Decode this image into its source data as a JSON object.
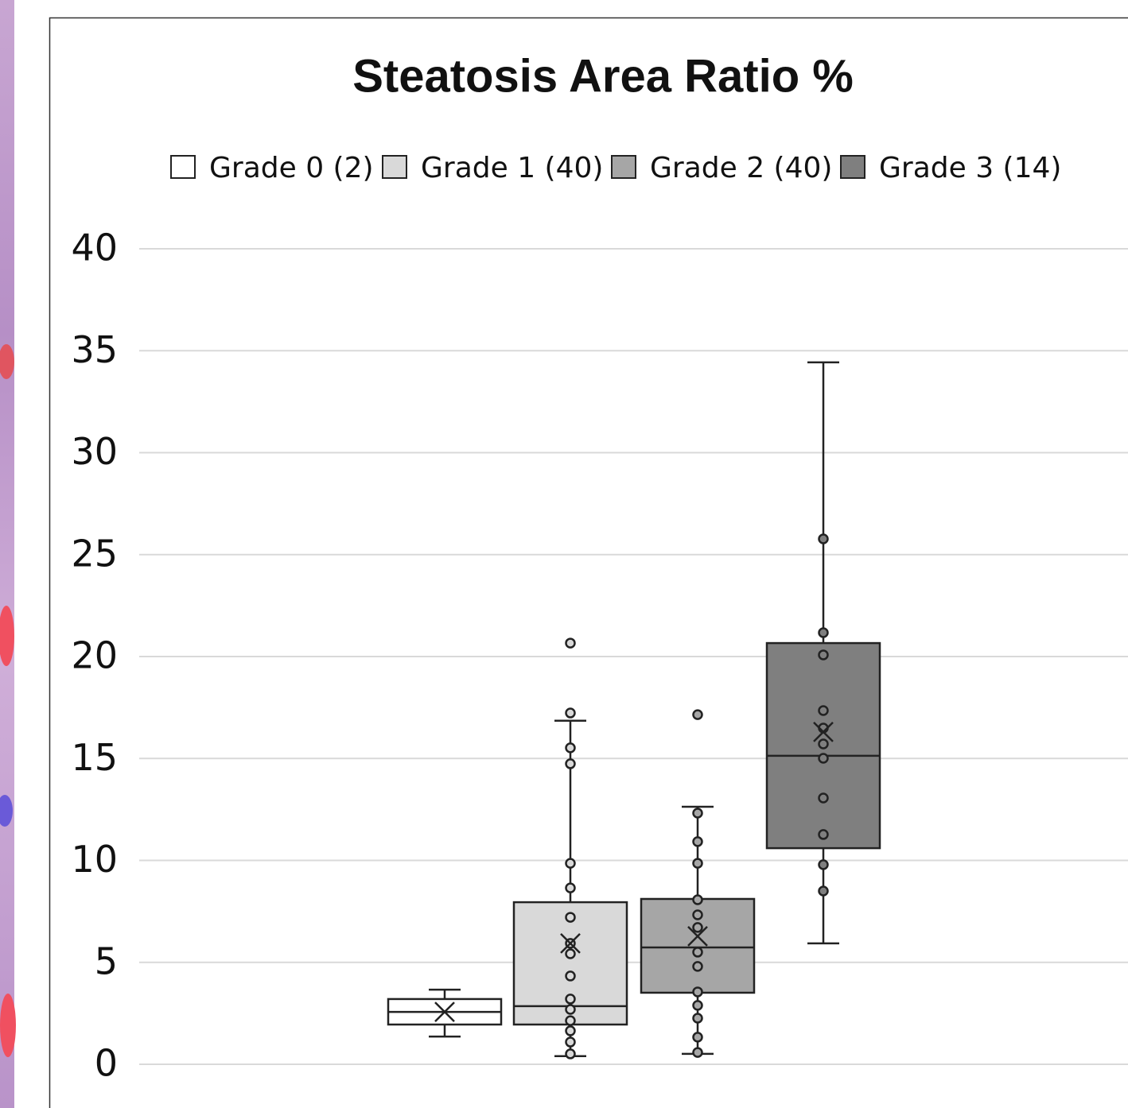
{
  "chart_data": {
    "type": "box",
    "title": "Steatosis  Area Ratio %",
    "ylim": [
      0,
      40
    ],
    "yticks": [
      0,
      5,
      10,
      15,
      20,
      25,
      30,
      35,
      40
    ],
    "grid": true,
    "legend": "top",
    "series": [
      {
        "name": "Grade 0 (2)",
        "color": "#ffffff",
        "min": 1.36,
        "q1": 1.95,
        "median": 2.57,
        "q3": 3.2,
        "max": 3.66,
        "mean": 2.57,
        "points": []
      },
      {
        "name": "Grade 1 (40)",
        "color": "#d9d9d9",
        "min": 0.4,
        "q1": 1.95,
        "median": 2.85,
        "q3": 7.95,
        "max": 16.85,
        "mean": 5.93,
        "points": [
          20.66,
          17.23,
          15.52,
          14.74,
          9.86,
          8.65,
          7.21,
          5.93,
          5.42,
          4.33,
          3.2,
          2.69,
          2.14,
          1.64,
          1.09,
          0.51
        ]
      },
      {
        "name": "Grade 2 (40)",
        "color": "#a6a6a6",
        "min": 0.51,
        "q1": 3.51,
        "median": 5.73,
        "q3": 8.11,
        "max": 12.63,
        "mean": 6.28,
        "points": [
          17.15,
          12.32,
          10.92,
          9.86,
          8.07,
          7.33,
          6.71,
          5.5,
          4.8,
          3.55,
          2.89,
          2.26,
          1.33,
          0.58
        ]
      },
      {
        "name": "Grade 3 (14)",
        "color": "#7f7f7f",
        "min": 5.93,
        "q1": 10.6,
        "median": 15.13,
        "q3": 20.66,
        "max": 34.43,
        "mean": 16.3,
        "points": [
          25.77,
          21.17,
          20.08,
          17.35,
          16.49,
          15.71,
          15.01,
          13.06,
          11.27,
          9.79,
          8.5
        ]
      }
    ]
  }
}
